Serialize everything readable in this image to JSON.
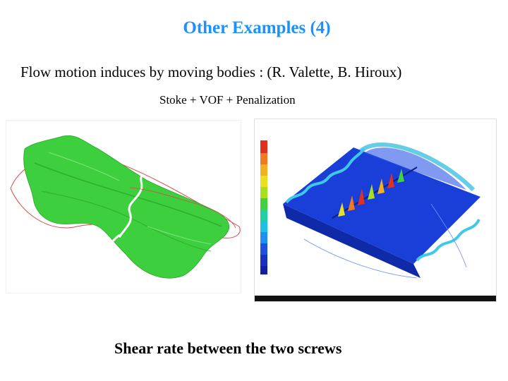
{
  "slide": {
    "title": "Other Examples (4)",
    "subtitle": "Flow motion induces by moving bodies : (R. Valette, B. Hiroux)",
    "method": "Stoke + VOF + Penalization",
    "caption": "Shear rate between the two screws"
  },
  "colors": {
    "title": "#1e90ff",
    "green_mesh": "#3ecf3e",
    "blue_field": "#1a3fd8",
    "outline": "#d94a4a"
  },
  "icons": {
    "left_figure": "twin-screw-green-mesh",
    "right_figure": "shear-rate-field-with-colorbar"
  }
}
